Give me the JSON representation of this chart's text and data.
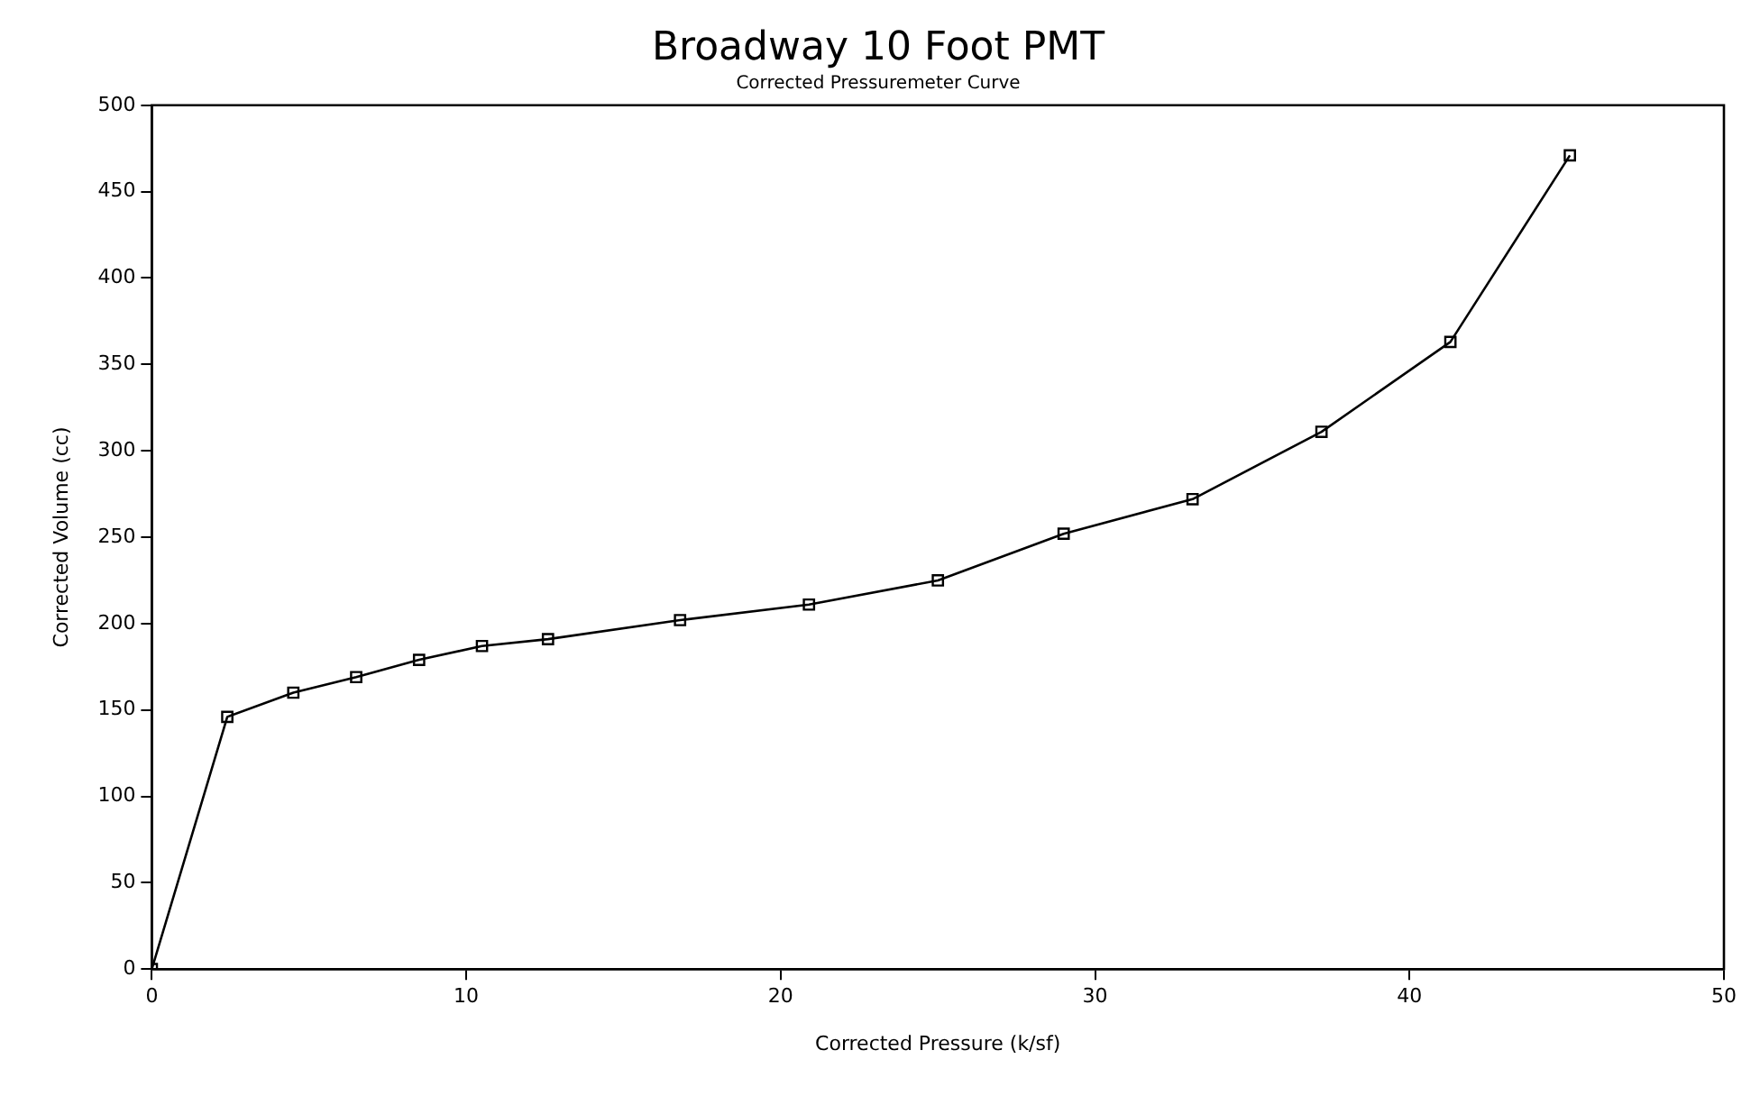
{
  "chart_data": {
    "type": "line",
    "title": "Broadway 10 Foot PMT",
    "subtitle": "Corrected Pressuremeter Curve",
    "xlabel": "Corrected Pressure (k/sf)",
    "ylabel": "Corrected Volume (cc)",
    "x": [
      0,
      2.4,
      4.5,
      6.5,
      8.5,
      10.5,
      12.6,
      16.8,
      20.9,
      25,
      29,
      33.1,
      37.2,
      41.3,
      45.1
    ],
    "series": [
      {
        "color": "#000000",
        "values": [
          0,
          146,
          160,
          169,
          179,
          187,
          191,
          202,
          211,
          225,
          252,
          272,
          311,
          363,
          471
        ]
      }
    ],
    "xlim": [
      0,
      50
    ],
    "xticks": [
      0,
      10,
      20,
      30,
      40,
      50
    ],
    "ylim": [
      0,
      500
    ],
    "yticks": [
      0,
      50,
      100,
      150,
      200,
      250,
      300,
      350,
      400,
      450,
      500
    ],
    "grid": false,
    "legend": false,
    "marker": "square",
    "line_style": "solid"
  }
}
